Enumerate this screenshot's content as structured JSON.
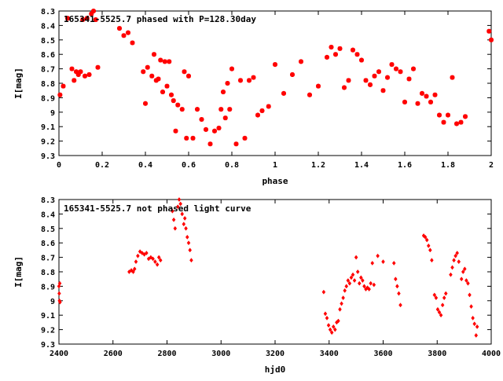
{
  "chart_data": [
    {
      "type": "scatter",
      "title": "165341-5525.7 phased with P=128.30day",
      "xlabel": "phase",
      "ylabel": "I[mag]",
      "xlim": [
        0,
        2
      ],
      "ylim": [
        9.3,
        8.3
      ],
      "y_inverted": true,
      "x_ticks": [
        "0",
        "0.2",
        "0.4",
        "0.6",
        "0.8",
        "1",
        "1.2",
        "1.4",
        "1.6",
        "1.8",
        "2"
      ],
      "y_ticks": [
        "8.3",
        "8.4",
        "8.5",
        "8.6",
        "8.7",
        "8.8",
        "8.9",
        "9",
        "9.1",
        "9.2",
        "9.3"
      ],
      "grid": false,
      "marker_color": "#ff0000",
      "series": [
        {
          "x": [
            0.005,
            0.02,
            0.04,
            0.06,
            0.07,
            0.08,
            0.09,
            0.1,
            0.11,
            0.12,
            0.13,
            0.14,
            0.15,
            0.16,
            0.17,
            0.18,
            0.28,
            0.3,
            0.32,
            0.34,
            0.39,
            0.4,
            0.41,
            0.43,
            0.44,
            0.45,
            0.46,
            0.47,
            0.48,
            0.49,
            0.5,
            0.51,
            0.52,
            0.53,
            0.54,
            0.55,
            0.57,
            0.58,
            0.59,
            0.6,
            0.62,
            0.64,
            0.66,
            0.68,
            0.7,
            0.72,
            0.74,
            0.75,
            0.76,
            0.77,
            0.78,
            0.79,
            0.8,
            0.82,
            0.84,
            0.86,
            0.88,
            0.9,
            0.92,
            0.94,
            0.97,
            1.0,
            1.04,
            1.08,
            1.12,
            1.16,
            1.2,
            1.24,
            1.26,
            1.28,
            1.3,
            1.32,
            1.34,
            1.36,
            1.38,
            1.4,
            1.42,
            1.44,
            1.46,
            1.48,
            1.5,
            1.52,
            1.54,
            1.56,
            1.58,
            1.6,
            1.62,
            1.64,
            1.66,
            1.68,
            1.7,
            1.72,
            1.74,
            1.76,
            1.78,
            1.8,
            1.82,
            1.84,
            1.86,
            1.88,
            1.99,
            2.0
          ],
          "y": [
            8.88,
            8.82,
            8.35,
            8.7,
            8.78,
            8.72,
            8.74,
            8.72,
            8.36,
            8.75,
            8.35,
            8.74,
            8.32,
            8.3,
            8.36,
            8.69,
            8.42,
            8.47,
            8.45,
            8.52,
            8.72,
            8.94,
            8.69,
            8.75,
            8.6,
            8.78,
            8.77,
            8.64,
            8.86,
            8.65,
            8.82,
            8.65,
            8.88,
            8.92,
            9.13,
            8.95,
            8.98,
            8.72,
            9.18,
            8.75,
            9.18,
            8.98,
            9.05,
            9.12,
            9.22,
            9.13,
            9.11,
            8.98,
            8.86,
            9.04,
            8.8,
            8.98,
            8.7,
            9.22,
            8.78,
            9.18,
            8.78,
            8.76,
            9.02,
            8.99,
            8.96,
            8.67,
            8.87,
            8.74,
            8.65,
            8.88,
            8.82,
            8.62,
            8.55,
            8.6,
            8.56,
            8.83,
            8.78,
            8.57,
            8.6,
            8.64,
            8.78,
            8.81,
            8.75,
            8.72,
            8.85,
            8.76,
            8.67,
            8.7,
            8.72,
            8.93,
            8.77,
            8.7,
            8.94,
            8.87,
            8.89,
            8.93,
            8.88,
            9.02,
            9.07,
            9.02,
            8.76,
            9.08,
            9.07,
            9.03,
            8.44,
            8.5
          ]
        }
      ]
    },
    {
      "type": "scatter",
      "title": "165341-5525.7 not phased light curve",
      "xlabel": "hjd0",
      "ylabel": "I[mag]",
      "xlim": [
        2400,
        4000
      ],
      "ylim": [
        9.3,
        8.3
      ],
      "y_inverted": true,
      "x_ticks": [
        "2400",
        "2600",
        "2800",
        "3000",
        "3200",
        "3400",
        "3600",
        "3800",
        "4000"
      ],
      "y_ticks": [
        "8.3",
        "8.4",
        "8.5",
        "8.6",
        "8.7",
        "8.8",
        "8.9",
        "9",
        "9.1",
        "9.2",
        "9.3"
      ],
      "grid": false,
      "marker_color": "#ff0000",
      "series": [
        {
          "x": [
            2400,
            2401,
            2402,
            2403,
            2404,
            2660,
            2668,
            2675,
            2680,
            2685,
            2692,
            2700,
            2708,
            2716,
            2724,
            2732,
            2740,
            2748,
            2756,
            2764,
            2770,
            2776,
            2820,
            2825,
            2830,
            2840,
            2845,
            2850,
            2856,
            2862,
            2866,
            2870,
            2875,
            2880,
            2885,
            2890,
            3380,
            3386,
            3392,
            3398,
            3404,
            3410,
            3416,
            3422,
            3428,
            3434,
            3440,
            3446,
            3452,
            3458,
            3464,
            3470,
            3476,
            3482,
            3488,
            3494,
            3500,
            3506,
            3512,
            3518,
            3524,
            3530,
            3536,
            3542,
            3548,
            3554,
            3560,
            3566,
            3580,
            3600,
            3640,
            3646,
            3652,
            3658,
            3664,
            3750,
            3756,
            3762,
            3768,
            3774,
            3780,
            3790,
            3796,
            3802,
            3808,
            3814,
            3820,
            3826,
            3832,
            3850,
            3856,
            3862,
            3868,
            3874,
            3880,
            3890,
            3896,
            3902,
            3908,
            3914,
            3920,
            3926,
            3932,
            3938,
            3944,
            3948
          ],
          "y": [
            8.9,
            8.95,
            9.0,
            8.88,
            9.01,
            8.8,
            8.79,
            8.8,
            8.78,
            8.73,
            8.69,
            8.66,
            8.67,
            8.68,
            8.67,
            8.71,
            8.7,
            8.71,
            8.73,
            8.75,
            8.7,
            8.72,
            8.38,
            8.44,
            8.5,
            8.35,
            8.3,
            8.33,
            8.4,
            8.47,
            8.43,
            8.5,
            8.56,
            8.6,
            8.65,
            8.72,
            8.94,
            9.09,
            9.12,
            9.17,
            9.2,
            9.22,
            9.18,
            9.2,
            9.15,
            9.14,
            9.06,
            9.02,
            8.98,
            8.93,
            8.9,
            8.86,
            8.88,
            8.84,
            8.82,
            8.86,
            8.7,
            8.8,
            8.88,
            8.84,
            8.86,
            8.9,
            8.92,
            8.91,
            8.92,
            8.88,
            8.74,
            8.89,
            8.69,
            8.73,
            8.74,
            8.85,
            8.9,
            8.95,
            9.03,
            8.55,
            8.56,
            8.58,
            8.62,
            8.65,
            8.72,
            8.96,
            8.98,
            9.06,
            9.08,
            9.1,
            9.03,
            8.98,
            8.95,
            8.82,
            8.77,
            8.72,
            8.69,
            8.67,
            8.73,
            8.85,
            8.8,
            8.78,
            8.86,
            8.88,
            8.96,
            9.04,
            9.12,
            9.16,
            9.24,
            9.18
          ]
        }
      ]
    }
  ]
}
